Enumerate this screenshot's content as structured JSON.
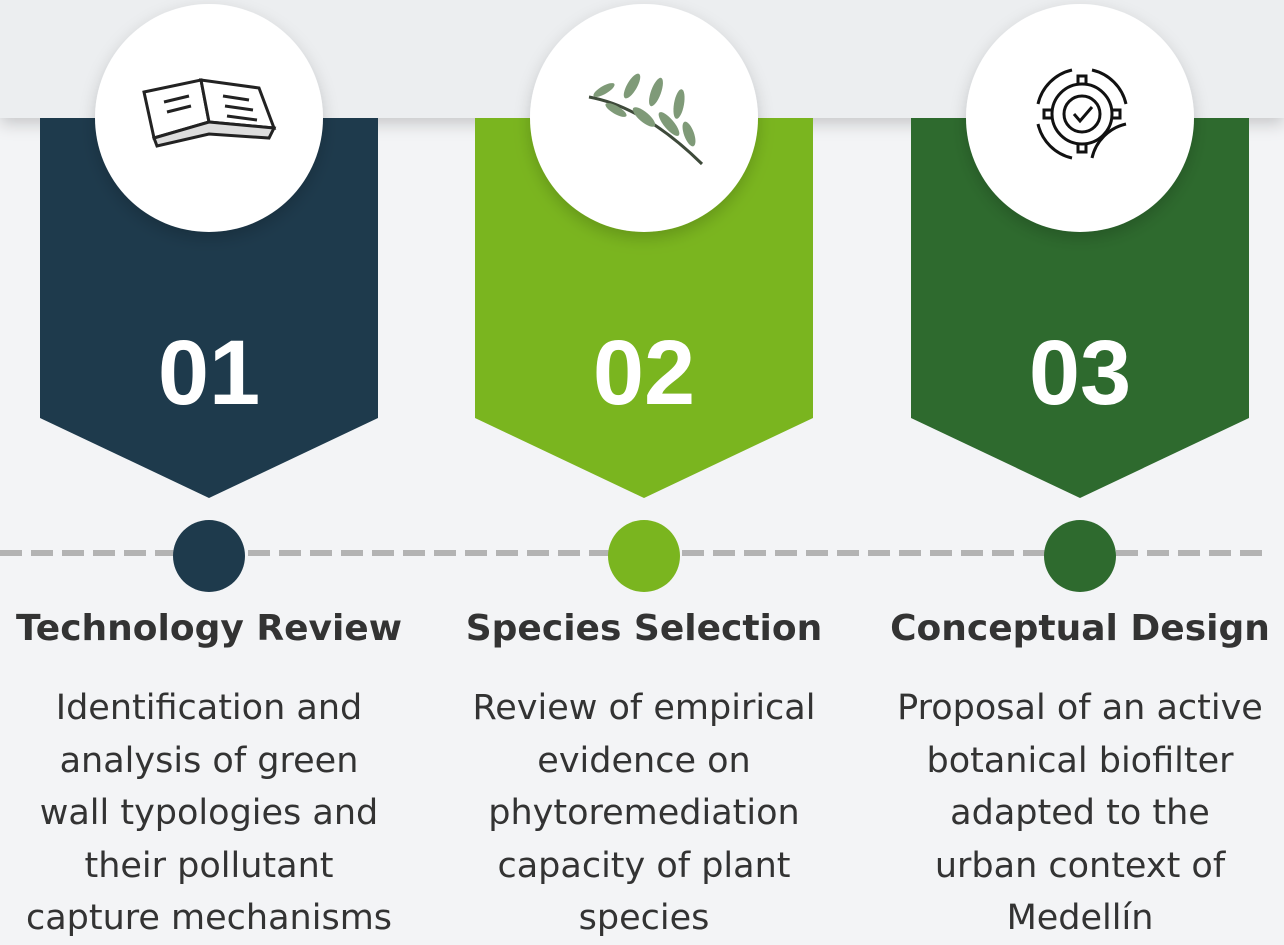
{
  "steps": [
    {
      "number": "01",
      "title": "Technology Review",
      "color": "#1e3a4c",
      "description": [
        "Identification and",
        "analysis of green",
        "wall typologies and",
        "their pollutant",
        "capture mechanisms"
      ]
    },
    {
      "number": "02",
      "title": "Species Selection",
      "color": "#7ab51f",
      "description": [
        "Review of empirical",
        "evidence on",
        "phytoremediation",
        "capacity of plant",
        "species"
      ]
    },
    {
      "number": "03",
      "title": "Conceptual Design",
      "color": "#2e6a2e",
      "description": [
        "Proposal of an active",
        "botanical biofilter",
        "adapted to the",
        "urban context of",
        "Medellín"
      ]
    }
  ]
}
